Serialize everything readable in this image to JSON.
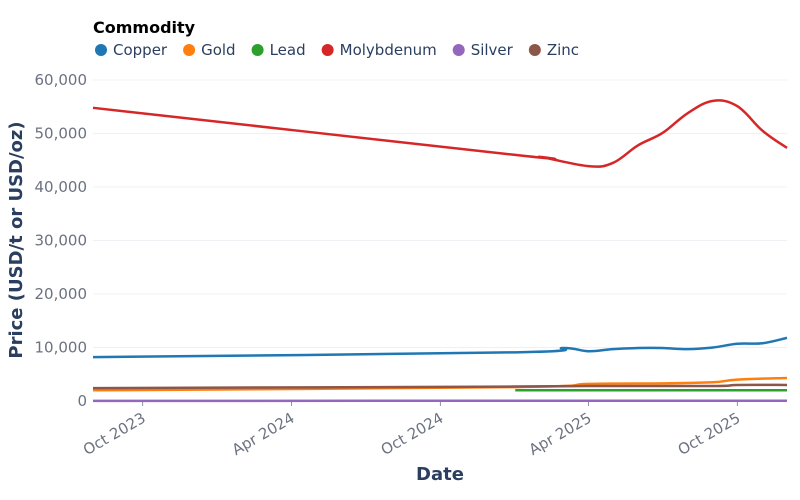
{
  "chart_data": {
    "type": "line",
    "legend_title": "Commodity",
    "legend_position": "top-left",
    "xlabel": "Date",
    "ylabel": "Price (USD/t or USD/oz)",
    "ylim": [
      0,
      60000
    ],
    "xlim": [
      "2023-08-01",
      "2025-12-01"
    ],
    "yticks": [
      0,
      10000,
      20000,
      30000,
      40000,
      50000,
      60000
    ],
    "ytick_labels": [
      "0",
      "10,000",
      "20,000",
      "30,000",
      "40,000",
      "50,000",
      "60,000"
    ],
    "xticks": [
      "2023-10-01",
      "2024-04-01",
      "2024-10-01",
      "2025-04-01",
      "2025-10-01"
    ],
    "xtick_labels": [
      "Oct 2023",
      "Apr 2024",
      "Oct 2024",
      "Apr 2025",
      "Oct 2025"
    ],
    "grid": true,
    "series": [
      {
        "name": "Copper",
        "color": "#1f77b4",
        "x": [
          "2023-08-01",
          "2025-01-01",
          "2025-03-01",
          "2025-04-01",
          "2025-05-01",
          "2025-06-01",
          "2025-07-01",
          "2025-08-01",
          "2025-09-01",
          "2025-10-01",
          "2025-11-01",
          "2025-12-01"
        ],
        "y": [
          8200,
          9100,
          9900,
          9300,
          9700,
          9900,
          9900,
          9700,
          10000,
          10700,
          10800,
          11800
        ]
      },
      {
        "name": "Gold",
        "color": "#ff7f0e",
        "x": [
          "2023-08-01",
          "2025-01-01",
          "2025-04-01",
          "2025-07-01",
          "2025-09-01",
          "2025-10-01",
          "2025-12-01"
        ],
        "y": [
          2000,
          2600,
          3200,
          3300,
          3500,
          4000,
          4300
        ]
      },
      {
        "name": "Lead",
        "color": "#2ca02c",
        "x": [
          "2025-01-01",
          "2025-04-01",
          "2025-08-01",
          "2025-12-01"
        ],
        "y": [
          2000,
          2000,
          2000,
          2000
        ]
      },
      {
        "name": "Molybdenum",
        "color": "#d62728",
        "x": [
          "2023-08-01",
          "2025-01-01",
          "2025-02-01",
          "2025-04-01",
          "2025-05-01",
          "2025-06-01",
          "2025-07-01",
          "2025-08-01",
          "2025-09-01",
          "2025-10-01",
          "2025-11-01",
          "2025-12-01"
        ],
        "y": [
          54800,
          46000,
          45600,
          43900,
          44500,
          47800,
          50100,
          53800,
          56100,
          55100,
          50500,
          47300
        ]
      },
      {
        "name": "Silver",
        "color": "#9467bd",
        "x": [
          "2023-08-01",
          "2025-12-01"
        ],
        "y": [
          25,
          50
        ]
      },
      {
        "name": "Zinc",
        "color": "#8c564b",
        "x": [
          "2023-08-01",
          "2025-01-01",
          "2025-04-01",
          "2025-09-01",
          "2025-10-01",
          "2025-12-01"
        ],
        "y": [
          2400,
          2700,
          2800,
          2800,
          3000,
          3000
        ]
      }
    ]
  }
}
